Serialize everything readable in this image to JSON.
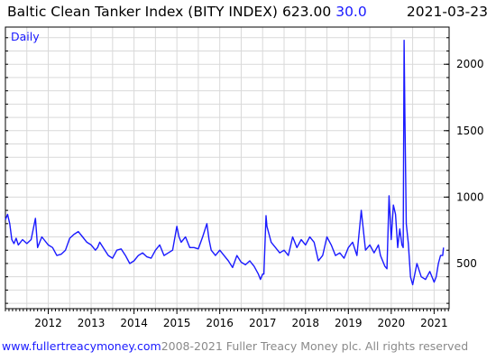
{
  "header": {
    "title": "Baltic Clean Tanker Index (BITY INDEX)",
    "last_value": "623.00",
    "change": "30.0",
    "date": "2021-03-23"
  },
  "footer": {
    "url": "www.fullertreacymoney.com",
    "copyright": "2008-2021 Fuller Treacy Money plc. All rights reserved"
  },
  "colors": {
    "series": "#1a1aff",
    "grid": "#d9d9d9",
    "axis": "#000000"
  },
  "chart_data": {
    "type": "line",
    "frequency_label": "Daily",
    "x_tick_labels": [
      "2012",
      "2013",
      "2014",
      "2015",
      "2016",
      "2017",
      "2018",
      "2019",
      "2020",
      "2021"
    ],
    "y_tick_labels": [
      "500",
      "1000",
      "1500",
      "2000"
    ],
    "y_ticks": [
      500,
      1000,
      1500,
      2000
    ],
    "xlim": [
      2011.0,
      2021.35
    ],
    "ylim": [
      160,
      2280
    ],
    "grid": true,
    "series": [
      {
        "x": [
          2011.0,
          2011.05,
          2011.1,
          2011.15,
          2011.2,
          2011.25,
          2011.3,
          2011.4,
          2011.5,
          2011.6,
          2011.7,
          2011.75,
          2011.8,
          2011.85,
          2011.9,
          2012.0,
          2012.1,
          2012.2,
          2012.3,
          2012.4,
          2012.5,
          2012.6,
          2012.7,
          2012.8,
          2012.9,
          2013.0,
          2013.1,
          2013.15,
          2013.2,
          2013.3,
          2013.4,
          2013.5,
          2013.6,
          2013.7,
          2013.8,
          2013.9,
          2014.0,
          2014.1,
          2014.2,
          2014.3,
          2014.4,
          2014.5,
          2014.6,
          2014.7,
          2014.8,
          2014.9,
          2015.0,
          2015.05,
          2015.1,
          2015.2,
          2015.3,
          2015.4,
          2015.5,
          2015.6,
          2015.7,
          2015.75,
          2015.8,
          2015.9,
          2016.0,
          2016.1,
          2016.2,
          2016.3,
          2016.4,
          2016.5,
          2016.6,
          2016.7,
          2016.75,
          2016.8,
          2016.9,
          2016.95,
          2017.0,
          2017.03,
          2017.08,
          2017.1,
          2017.2,
          2017.3,
          2017.4,
          2017.5,
          2017.6,
          2017.7,
          2017.8,
          2017.9,
          2018.0,
          2018.1,
          2018.2,
          2018.3,
          2018.4,
          2018.5,
          2018.6,
          2018.7,
          2018.8,
          2018.9,
          2019.0,
          2019.1,
          2019.2,
          2019.3,
          2019.4,
          2019.5,
          2019.6,
          2019.7,
          2019.75,
          2019.8,
          2019.85,
          2019.9,
          2019.95,
          2020.0,
          2020.05,
          2020.1,
          2020.15,
          2020.2,
          2020.25,
          2020.28,
          2020.3,
          2020.32,
          2020.35,
          2020.4,
          2020.45,
          2020.5,
          2020.6,
          2020.7,
          2020.8,
          2020.9,
          2021.0,
          2021.05,
          2021.1,
          2021.15,
          2021.2,
          2021.22
        ],
        "y": [
          830,
          870,
          800,
          680,
          650,
          690,
          640,
          680,
          650,
          680,
          840,
          620,
          660,
          700,
          680,
          640,
          620,
          560,
          570,
          600,
          690,
          720,
          740,
          700,
          660,
          640,
          600,
          620,
          660,
          610,
          560,
          540,
          600,
          610,
          560,
          500,
          520,
          560,
          580,
          550,
          540,
          600,
          640,
          560,
          580,
          600,
          780,
          700,
          660,
          700,
          620,
          620,
          610,
          700,
          800,
          680,
          600,
          560,
          600,
          560,
          520,
          470,
          560,
          510,
          490,
          520,
          500,
          480,
          420,
          380,
          420,
          420,
          860,
          780,
          660,
          620,
          580,
          600,
          560,
          700,
          620,
          680,
          640,
          700,
          660,
          520,
          560,
          700,
          640,
          560,
          580,
          540,
          620,
          660,
          560,
          900,
          600,
          640,
          580,
          640,
          560,
          520,
          480,
          460,
          1010,
          680,
          940,
          870,
          620,
          760,
          640,
          620,
          2180,
          1600,
          800,
          650,
          400,
          340,
          500,
          400,
          380,
          440,
          360,
          400,
          500,
          560,
          560,
          620
        ]
      }
    ]
  }
}
